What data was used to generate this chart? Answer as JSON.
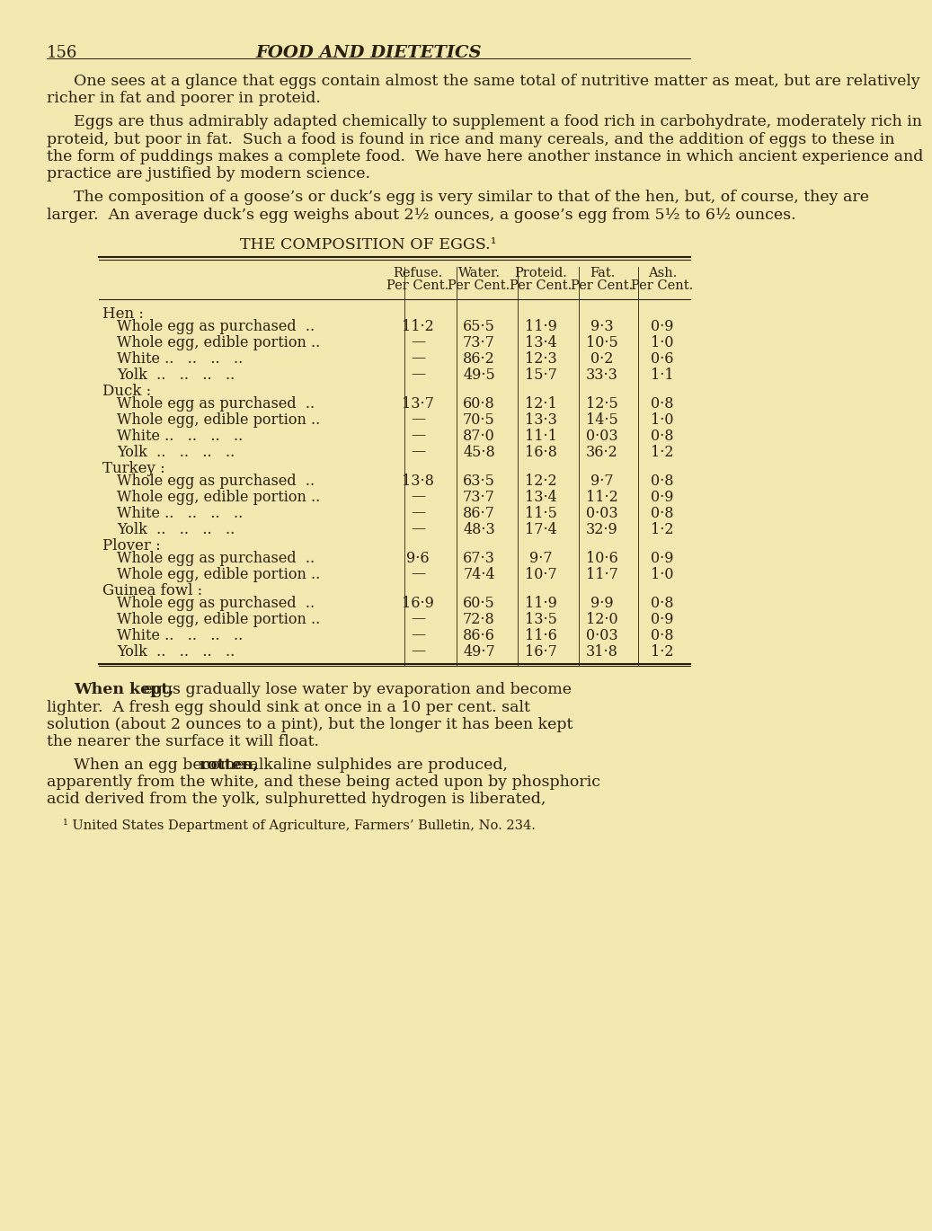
{
  "bg_color": "#f0e6a0",
  "page_color": "#f2e8b0",
  "text_color": "#2a2010",
  "page_number": "156",
  "header_title": "FOOD AND DIETETICS",
  "para1": "One sees at a glance that eggs contain almost the same total of nutritive matter as meat, but are relatively richer in fat and poorer in proteid.",
  "para2": "Eggs are thus admirably adapted chemically to supplement a food rich in carbohydrate, moderately rich in proteid, but poor in fat.  Such a food is found in rice and many cereals, and the addition of eggs to these in the form of puddings makes a complete food.  We have here another instance in which ancient experience and practice are justified by modern science.",
  "para3": "The composition of a goose’s or duck’s egg is very similar to that of the hen, but, of course, they are larger.  An average duck’s egg weighs about 2½ ounces, a goose’s egg from 5½ to 6½ ounces.",
  "table_title": "THE COMPOSITION OF EGGS.¹",
  "col_headers": [
    "Refuse.\nPer Cent.",
    "Water.\nPer Cent.",
    "Proteid.\nPer Cent.",
    "Fat.\nPer Cent.",
    "Ash.\nPer Cent."
  ],
  "table_rows": [
    {
      "label": "Hen :",
      "indent": 0,
      "data": [
        "",
        "",
        "",
        "",
        ""
      ]
    },
    {
      "label": "  Whole egg as purchased  ..",
      "indent": 1,
      "data": [
        "11·2",
        "65·5",
        "11·9",
        "9·3",
        "0·9"
      ]
    },
    {
      "label": "  Whole egg, edible portion ..",
      "indent": 1,
      "data": [
        "—",
        "73·7",
        "13·4",
        "10·5",
        "1·0"
      ]
    },
    {
      "label": "  White ..   ..   ..   ..",
      "indent": 1,
      "data": [
        "—",
        "86·2",
        "12·3",
        "0·2",
        "0·6"
      ]
    },
    {
      "label": "  Yolk  ..   ..   ..   ..",
      "indent": 1,
      "data": [
        "—",
        "49·5",
        "15·7",
        "33·3",
        "1·1"
      ]
    },
    {
      "label": "Duck :",
      "indent": 0,
      "data": [
        "",
        "",
        "",
        "",
        ""
      ]
    },
    {
      "label": "  Whole egg as purchased  ..",
      "indent": 1,
      "data": [
        "13·7",
        "60·8",
        "12·1",
        "12·5",
        "0·8"
      ]
    },
    {
      "label": "  Whole egg, edible portion ..",
      "indent": 1,
      "data": [
        "—",
        "70·5",
        "13·3",
        "14·5",
        "1·0"
      ]
    },
    {
      "label": "  White ..   ..   ..   ..",
      "indent": 1,
      "data": [
        "—",
        "87·0",
        "11·1",
        "0·03",
        "0·8"
      ]
    },
    {
      "label": "  Yolk  ..   ..   ..   ..",
      "indent": 1,
      "data": [
        "—",
        "45·8",
        "16·8",
        "36·2",
        "1·2"
      ]
    },
    {
      "label": "Turkey :",
      "indent": 0,
      "data": [
        "",
        "",
        "",
        "",
        ""
      ]
    },
    {
      "label": "  Whole egg as purchased  ..",
      "indent": 1,
      "data": [
        "13·8",
        "63·5",
        "12·2",
        "9·7",
        "0·8"
      ]
    },
    {
      "label": "  Whole egg, edible portion ..",
      "indent": 1,
      "data": [
        "—",
        "73·7",
        "13·4",
        "11·2",
        "0·9"
      ]
    },
    {
      "label": "  White ..   ..   ..   ..",
      "indent": 1,
      "data": [
        "—",
        "86·7",
        "11·5",
        "0·03",
        "0·8"
      ]
    },
    {
      "label": "  Yolk  ..   ..   ..   ..",
      "indent": 1,
      "data": [
        "—",
        "48·3",
        "17·4",
        "32·9",
        "1·2"
      ]
    },
    {
      "label": "Plover :",
      "indent": 0,
      "data": [
        "",
        "",
        "",
        "",
        ""
      ]
    },
    {
      "label": "  Whole egg as purchased  ..",
      "indent": 1,
      "data": [
        "9·6",
        "67·3",
        "9·7",
        "10·6",
        "0·9"
      ]
    },
    {
      "label": "  Whole egg, edible portion ..",
      "indent": 1,
      "data": [
        "—",
        "74·4",
        "10·7",
        "11·7",
        "1·0"
      ]
    },
    {
      "label": "Guinea fowl :",
      "indent": 0,
      "data": [
        "",
        "",
        "",
        "",
        ""
      ]
    },
    {
      "label": "  Whole egg as purchased  ..",
      "indent": 1,
      "data": [
        "16·9",
        "60·5",
        "11·9",
        "9·9",
        "0·8"
      ]
    },
    {
      "label": "  Whole egg, edible portion ..",
      "indent": 1,
      "data": [
        "—",
        "72·8",
        "13·5",
        "12·0",
        "0·9"
      ]
    },
    {
      "label": "  White ..   ..   ..   ..",
      "indent": 1,
      "data": [
        "—",
        "86·6",
        "11·6",
        "0·03",
        "0·8"
      ]
    },
    {
      "label": "  Yolk  ..   ..   ..   ..",
      "indent": 1,
      "data": [
        "—",
        "49·7",
        "16·7",
        "31·8",
        "1·2"
      ]
    }
  ],
  "para_when_kept": "When kept, eggs gradually lose water by evaporation and become lighter.  A fresh egg should sink at once in a 10 per cent. salt solution (about 2 ounces to a pint), but the longer it has been kept the nearer the surface it will float.",
  "when_kept_bold": "When kept,",
  "para_rotten": "When an egg becomes rotten, alkaline sulphides are produced, apparently from the white, and these being acted upon by phosphoric acid derived from the yolk, sulphuretted hydrogen is liberated,",
  "rotten_bold": "rotten,",
  "footnote": "¹ United States Department of Agriculture, Farmers’ Bulletin, No. 234."
}
